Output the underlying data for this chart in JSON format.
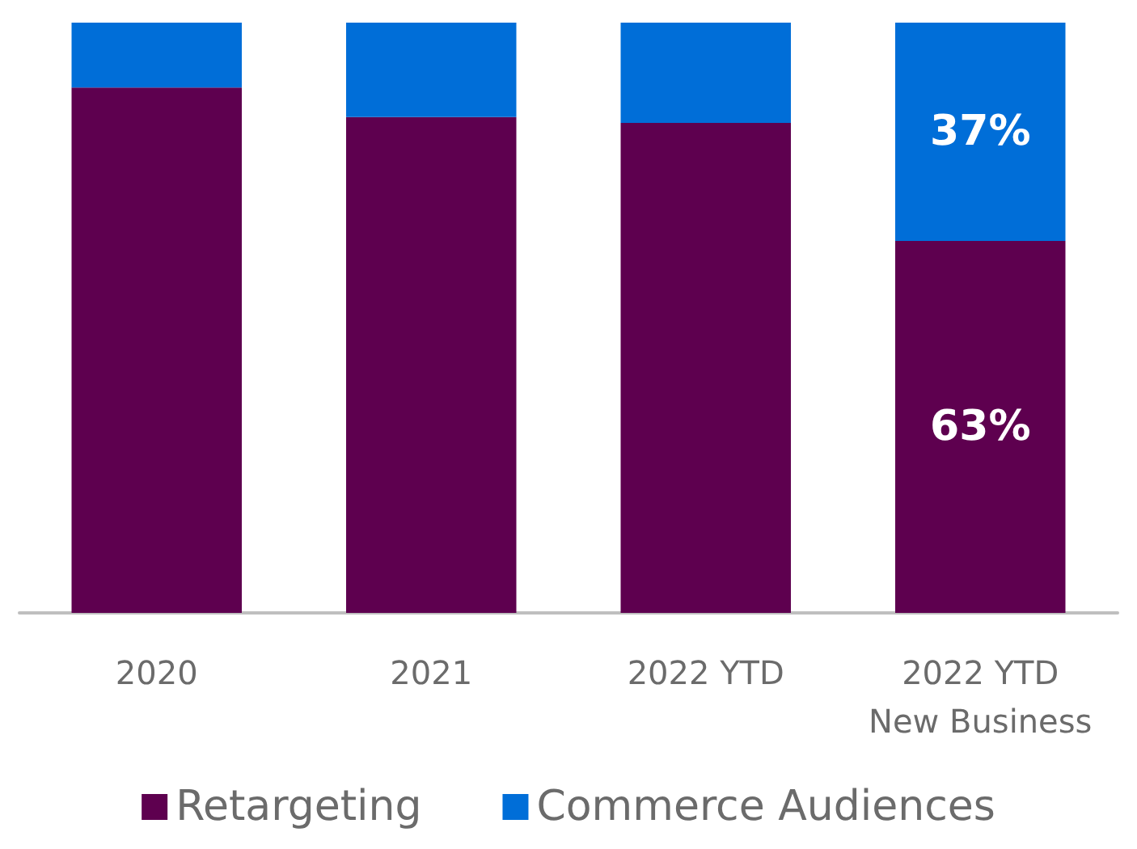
{
  "chart_data": {
    "type": "bar",
    "stacked": true,
    "categories": [
      "2020",
      "2021",
      "2022 YTD",
      "2022 YTD\nNew Business"
    ],
    "ylim": [
      0,
      100
    ],
    "tick_labels": "x",
    "legend": "bottom",
    "series": [
      {
        "name": "Retargeting",
        "color": "#5e004f",
        "values": [
          89,
          84,
          83,
          63
        ],
        "value_labels": [
          null,
          null,
          null,
          "63%"
        ]
      },
      {
        "name": "Commerce Audiences",
        "color": "#006ed8",
        "values": [
          11,
          16,
          17,
          37
        ],
        "value_labels": [
          null,
          null,
          null,
          "37%"
        ]
      }
    ]
  }
}
